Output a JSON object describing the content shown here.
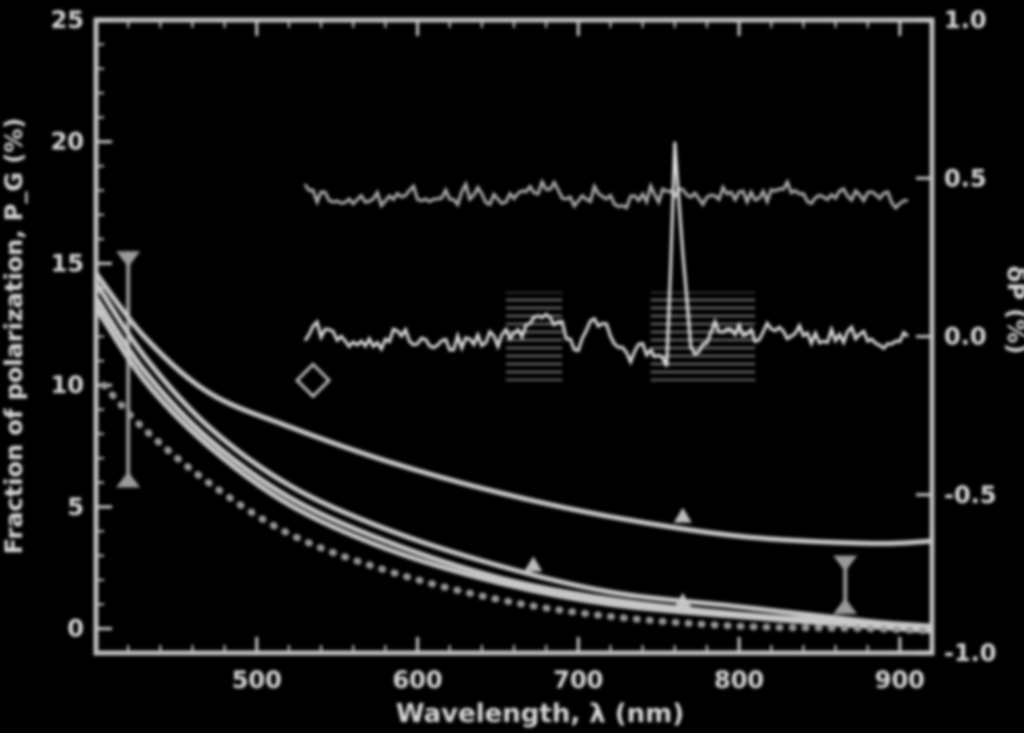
{
  "chart_data": {
    "type": "line",
    "xlabel": "Wavelength, λ (nm)",
    "ylabel_left": "Fraction of polarization, P_G (%)",
    "ylabel_right": "δP (%)",
    "xlim": [
      400,
      920
    ],
    "ylim_left": [
      -1,
      25
    ],
    "ylim_right": [
      -1.0,
      1.0
    ],
    "x_ticks": [
      {
        "value": 500,
        "label": "500"
      },
      {
        "value": 600,
        "label": "600"
      },
      {
        "value": 700,
        "label": "700"
      },
      {
        "value": 800,
        "label": "800"
      },
      {
        "value": 900,
        "label": "900"
      }
    ],
    "y_ticks_left": [
      {
        "value": 0,
        "label": "0"
      },
      {
        "value": 5,
        "label": "5"
      },
      {
        "value": 10,
        "label": "10"
      },
      {
        "value": 15,
        "label": "15"
      },
      {
        "value": 20,
        "label": "20"
      },
      {
        "value": 25,
        "label": "25"
      }
    ],
    "y_ticks_right": [
      {
        "value": -1.0,
        "label": "-1.0"
      },
      {
        "value": -0.5,
        "label": "-0.5"
      },
      {
        "value": 0.0,
        "label": "0.0"
      },
      {
        "value": 0.5,
        "label": "0.5"
      },
      {
        "value": 1.0,
        "label": "1.0"
      }
    ],
    "grid": false,
    "series": [
      {
        "style": "solid",
        "axis": "left",
        "x": [
          400,
          430,
          470,
          520,
          580,
          650,
          720,
          800,
          880,
          920
        ],
        "y": [
          14.6,
          12.0,
          9.7,
          8.3,
          6.9,
          5.6,
          4.6,
          3.8,
          3.5,
          3.6
        ]
      },
      {
        "style": "solid",
        "axis": "left",
        "x": [
          400,
          430,
          470,
          520,
          580,
          650,
          720,
          800,
          880,
          920
        ],
        "y": [
          14.2,
          11.2,
          8.3,
          5.9,
          4.1,
          2.6,
          1.5,
          0.9,
          0.3,
          0.1
        ]
      },
      {
        "style": "solid",
        "axis": "left",
        "x": [
          400,
          430,
          470,
          520,
          580,
          650,
          720,
          800,
          880,
          920
        ],
        "y": [
          13.6,
          10.6,
          7.8,
          5.4,
          3.6,
          2.1,
          1.2,
          0.6,
          0.2,
          0.0
        ]
      },
      {
        "style": "solid",
        "axis": "left",
        "x": [
          400,
          430,
          470,
          520,
          580,
          650,
          720,
          800,
          880,
          920
        ],
        "y": [
          13.2,
          10.2,
          7.5,
          5.1,
          3.3,
          1.9,
          1.0,
          0.5,
          0.1,
          -0.1
        ]
      },
      {
        "style": "dotted",
        "axis": "left",
        "x": [
          405,
          430,
          470,
          520,
          580,
          650,
          720,
          800,
          880,
          920
        ],
        "y": [
          10.0,
          8.2,
          6.0,
          3.9,
          2.4,
          1.2,
          0.5,
          0.1,
          0.0,
          -0.1
        ]
      },
      {
        "style": "noisy",
        "axis": "right",
        "x": [
          530,
          550,
          570,
          590,
          610,
          630,
          650,
          670,
          690,
          710,
          730,
          750,
          760,
          770,
          790,
          810,
          830,
          850,
          870,
          890,
          905
        ],
        "y": [
          0.45,
          0.44,
          0.43,
          0.46,
          0.44,
          0.45,
          0.43,
          0.46,
          0.45,
          0.44,
          0.43,
          0.45,
          0.46,
          0.44,
          0.45,
          0.44,
          0.46,
          0.43,
          0.45,
          0.44,
          0.43
        ]
      },
      {
        "style": "noisy",
        "axis": "right",
        "x": [
          530,
          550,
          570,
          590,
          610,
          630,
          650,
          670,
          680,
          690,
          700,
          710,
          720,
          730,
          740,
          750,
          755,
          760,
          770,
          790,
          810,
          830,
          850,
          870,
          890,
          905
        ],
        "y": [
          0.02,
          0.0,
          -0.02,
          0.01,
          -0.03,
          -0.02,
          0.0,
          0.04,
          0.08,
          0.02,
          -0.04,
          0.06,
          0.01,
          -0.08,
          -0.05,
          -0.03,
          -0.12,
          0.62,
          -0.06,
          0.04,
          0.0,
          0.02,
          -0.01,
          0.0,
          -0.02,
          0.0
        ]
      }
    ],
    "annotations": [
      {
        "type": "error_bar",
        "x": 420,
        "y_low": 5.8,
        "y_high": 15.5
      },
      {
        "type": "error_bar",
        "x": 866,
        "y_low": 0.6,
        "y_high": 3.0
      },
      {
        "type": "diamond",
        "x": 535,
        "y": 10.2
      },
      {
        "type": "triangle",
        "x": 765,
        "y": 4.6
      },
      {
        "type": "triangle",
        "x": 765,
        "y": 1.1
      },
      {
        "type": "triangle",
        "x": 672,
        "y": 2.6
      },
      {
        "type": "hatched_box",
        "x0": 655,
        "x1": 690,
        "y_right_low": -0.14,
        "y_right_high": 0.14
      },
      {
        "type": "hatched_box",
        "x0": 745,
        "x1": 810,
        "y_right_low": -0.14,
        "y_right_high": 0.14
      }
    ]
  }
}
